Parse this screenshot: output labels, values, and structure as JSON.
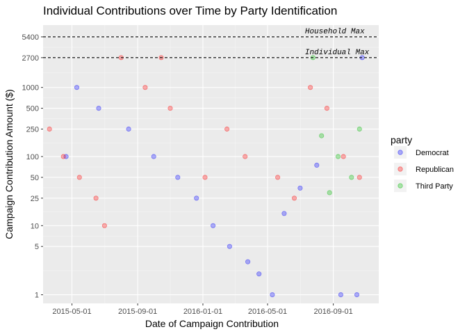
{
  "chart_data": {
    "type": "scatter",
    "title": "Individual Contributions over Time by Party Identification",
    "xlabel": "Date of Campaign Contribution",
    "ylabel": "Campaign Contribution Amount ($)",
    "x_scale": "date",
    "y_scale": "log10",
    "xlim": [
      "2015-03-08",
      "2016-11-25"
    ],
    "ylim": [
      0.75,
      8000
    ],
    "x_ticks": [
      "2015-05-01",
      "2015-09-01",
      "2016-01-01",
      "2016-05-01",
      "2016-09-01"
    ],
    "y_ticks": [
      1,
      5,
      10,
      25,
      50,
      100,
      250,
      500,
      1000,
      2700,
      5400
    ],
    "y_tick_labels": [
      "1",
      "5",
      "10",
      "25",
      "50",
      "100",
      "250",
      "500",
      "1000",
      "2700",
      "5400"
    ],
    "background": "#ebebeb",
    "grid": true,
    "point_alpha": 0.15,
    "reference_lines": [
      {
        "label": "Household Max",
        "y": 5400,
        "annotation_x": "2016-07-10"
      },
      {
        "label": "Individual Max",
        "y": 2700,
        "annotation_x": "2016-07-10"
      }
    ],
    "legend": {
      "title": "party",
      "position": "right"
    },
    "series": [
      {
        "name": "Democrat",
        "color": "#0000ff",
        "points": [
          {
            "x": "2015-05-10",
            "y": 1000
          },
          {
            "x": "2015-06-20",
            "y": 500
          },
          {
            "x": "2015-08-15",
            "y": 250
          },
          {
            "x": "2015-10-01",
            "y": 100
          },
          {
            "x": "2015-11-15",
            "y": 50
          },
          {
            "x": "2015-12-20",
            "y": 25
          },
          {
            "x": "2016-01-20",
            "y": 10
          },
          {
            "x": "2016-02-20",
            "y": 5
          },
          {
            "x": "2016-03-25",
            "y": 3
          },
          {
            "x": "2016-04-15",
            "y": 2
          },
          {
            "x": "2016-05-10",
            "y": 1
          },
          {
            "x": "2016-06-01",
            "y": 15
          },
          {
            "x": "2016-07-01",
            "y": 35
          },
          {
            "x": "2016-08-01",
            "y": 75
          },
          {
            "x": "2016-09-15",
            "y": 1
          },
          {
            "x": "2016-10-15",
            "y": 1
          },
          {
            "x": "2016-10-25",
            "y": 2700
          },
          {
            "x": "2015-04-20",
            "y": 100
          }
        ]
      },
      {
        "name": "Republican",
        "color": "#ff0000",
        "points": [
          {
            "x": "2015-03-20",
            "y": 250
          },
          {
            "x": "2015-04-15",
            "y": 100
          },
          {
            "x": "2015-05-15",
            "y": 50
          },
          {
            "x": "2015-06-15",
            "y": 25
          },
          {
            "x": "2015-08-01",
            "y": 2700
          },
          {
            "x": "2015-09-15",
            "y": 1000
          },
          {
            "x": "2015-11-01",
            "y": 500
          },
          {
            "x": "2016-01-05",
            "y": 50
          },
          {
            "x": "2016-02-15",
            "y": 250
          },
          {
            "x": "2016-03-20",
            "y": 100
          },
          {
            "x": "2016-05-20",
            "y": 50
          },
          {
            "x": "2016-06-20",
            "y": 25
          },
          {
            "x": "2016-07-20",
            "y": 1000
          },
          {
            "x": "2016-08-20",
            "y": 500
          },
          {
            "x": "2016-09-20",
            "y": 100
          },
          {
            "x": "2016-10-20",
            "y": 50
          },
          {
            "x": "2015-07-01",
            "y": 10
          },
          {
            "x": "2015-10-15",
            "y": 2700
          }
        ]
      },
      {
        "name": "Third Party",
        "color": "#00bb00",
        "points": [
          {
            "x": "2016-08-10",
            "y": 200
          },
          {
            "x": "2016-09-10",
            "y": 100
          },
          {
            "x": "2016-10-05",
            "y": 50
          },
          {
            "x": "2016-10-20",
            "y": 250
          },
          {
            "x": "2016-07-25",
            "y": 2700
          },
          {
            "x": "2016-08-25",
            "y": 30
          }
        ]
      }
    ]
  }
}
